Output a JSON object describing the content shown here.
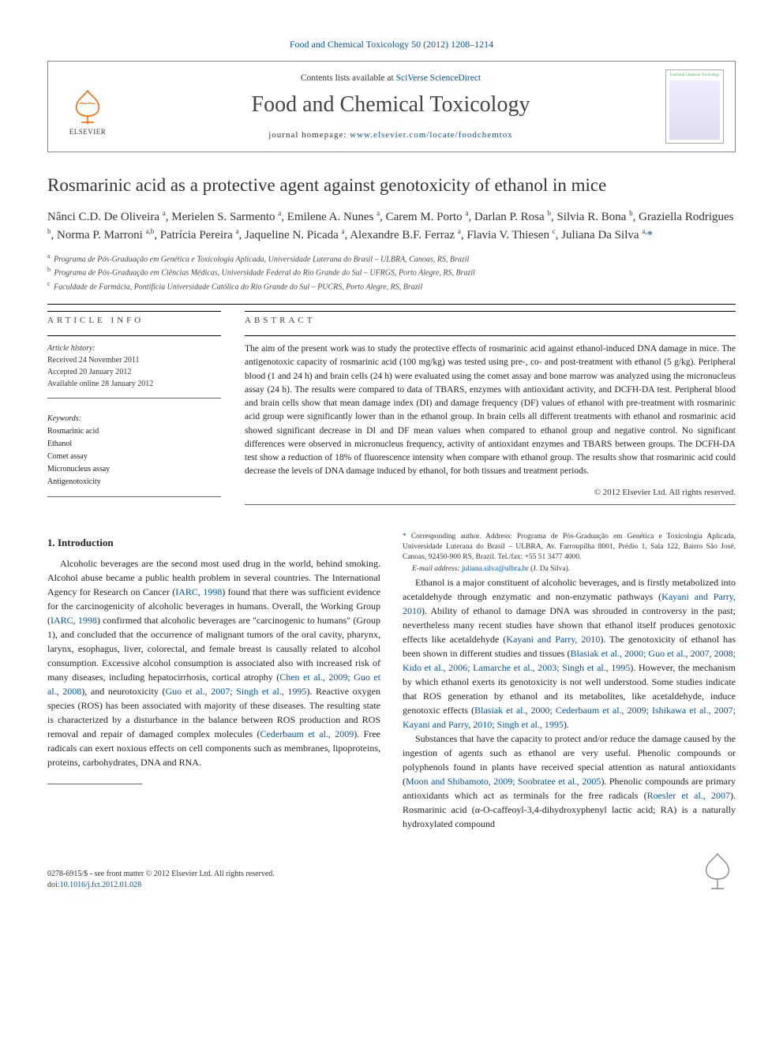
{
  "top_citation_link": "Food and Chemical Toxicology 50 (2012) 1208–1214",
  "header": {
    "contents_prefix": "Contents lists available at ",
    "contents_link": "SciVerse ScienceDirect",
    "journal_name": "Food and Chemical Toxicology",
    "homepage_prefix": "journal homepage: ",
    "homepage_link": "www.elsevier.com/locate/foodchemtox",
    "publisher_logo_text": "ELSEVIER",
    "cover_caption": "Food and Chemical Toxicology"
  },
  "article": {
    "title": "Rosmarinic acid as a protective agent against genotoxicity of ethanol in mice",
    "authors_html": "Nânci C.D. De Oliveira <sup>a</sup>, Merielen S. Sarmento <sup>a</sup>, Emilene A. Nunes <sup>a</sup>, Carem M. Porto <sup>a</sup>, Darlan P. Rosa <sup>b</sup>, Silvia R. Bona <sup>b</sup>, Graziella Rodrigues <sup>b</sup>, Norma P. Marroni <sup>a,b</sup>, Patrícia Pereira <sup>a</sup>, Jaqueline N. Picada <sup>a</sup>, Alexandre B.F. Ferraz <sup>a</sup>, Flavia V. Thiesen <sup>c</sup>, Juliana Da Silva <sup>a,</sup>",
    "corr_symbol": "*",
    "affiliations": [
      {
        "sup": "a",
        "text": "Programa de Pós-Graduação em Genética e Toxicologia Aplicada, Universidade Luterana do Brasil – ULBRA, Canoas, RS, Brazil"
      },
      {
        "sup": "b",
        "text": "Programa de Pós-Graduação em Ciências Médicas, Universidade Federal do Rio Grande do Sul – UFRGS, Porto Alegre, RS, Brazil"
      },
      {
        "sup": "c",
        "text": "Faculdade de Farmácia, Pontifícia Universidade Católica do Rio Grande do Sul – PUCRS, Porto Alegre, RS, Brazil"
      }
    ]
  },
  "info": {
    "heading": "article info",
    "history_label": "Article history:",
    "received": "Received 24 November 2011",
    "accepted": "Accepted 20 January 2012",
    "online": "Available online 28 January 2012",
    "keywords_label": "Keywords:",
    "keywords": [
      "Rosmarinic acid",
      "Ethanol",
      "Comet assay",
      "Micronucleus assay",
      "Antigenotoxicity"
    ]
  },
  "abstract": {
    "heading": "abstract",
    "text": "The aim of the present work was to study the protective effects of rosmarinic acid against ethanol-induced DNA damage in mice. The antigenotoxic capacity of rosmarinic acid (100 mg/kg) was tested using pre-, co- and post-treatment with ethanol (5 g/kg). Peripheral blood (1 and 24 h) and brain cells (24 h) were evaluated using the comet assay and bone marrow was analyzed using the micronucleus assay (24 h). The results were compared to data of TBARS, enzymes with antioxidant activity, and DCFH-DA test. Peripheral blood and brain cells show that mean damage index (DI) and damage frequency (DF) values of ethanol with pre-treatment with rosmarinic acid group were significantly lower than in the ethanol group. In brain cells all different treatments with ethanol and rosmarinic acid showed significant decrease in DI and DF mean values when compared to ethanol group and negative control. No significant differences were observed in micronucleus frequency, activity of antioxidant enzymes and TBARS between groups. The DCFH-DA test show a reduction of 18% of fluorescence intensity when compare with ethanol group. The results show that rosmarinic acid could decrease the levels of DNA damage induced by ethanol, for both tissues and treatment periods.",
    "copyright": "© 2012 Elsevier Ltd. All rights reserved."
  },
  "body": {
    "section_heading": "1. Introduction",
    "p1_a": "Alcoholic beverages are the second most used drug in the world, behind smoking. Alcohol abuse became a public health problem in several countries. The International Agency for Research on Cancer (",
    "p1_ref1": "IARC, 1998",
    "p1_b": ") found that there was sufficient evidence for the carcinogenicity of alcoholic beverages in humans. Overall, the Working Group (",
    "p1_ref2": "IARC, 1998",
    "p1_c": ") confirmed that alcoholic beverages are \"carcinogenic to humans\" (Group 1), and concluded that the occurrence of malignant tumors of the oral cavity, pharynx, larynx, esophagus, liver, colorectal, and female breast is causally related to alcohol consumption. Excessive alcohol consumption is associated also with increased risk of many diseases, including hepatocirrhosis, cortical atrophy (",
    "p1_ref3": "Chen et al., 2009; Guo et al., 2008",
    "p1_d": "), and neurotoxicity (",
    "p1_ref4": "Guo et al., 2007; Singh et al., 1995",
    "p1_e": "). Reactive oxygen species (ROS) has been associated with majority of these diseases. The resulting state is characterized by a disturbance in the balance between ROS production and ROS removal and repair of damaged complex molecules (",
    "p1_ref5": "Cederbaum et al., 2009",
    "p1_f": "). Free radicals can exert noxious effects on cell components such as membranes, lipoproteins, proteins, carbohydrates, DNA and RNA.",
    "p2_a": "Ethanol is a major constituent of alcoholic beverages, and is firstly metabolized into acetaldehyde through enzymatic and non-enzymatic pathways (",
    "p2_ref1": "Kayani and Parry, 2010",
    "p2_b": "). Ability of ethanol to damage DNA was shrouded in controversy in the past; nevertheless many recent studies have shown that ethanol itself produces genotoxic effects like acetaldehyde (",
    "p2_ref2": "Kayani and Parry, 2010",
    "p2_c": "). The genotoxicity of ethanol has been shown in different studies and tissues (",
    "p2_ref3": "Blasiak et al., 2000; Guo et al., 2007, 2008; Kido et al., 2006; Lamarche et al., 2003; Singh et al., 1995",
    "p2_d": "). However, the mechanism by which ethanol exerts its genotoxicity is not well understood. Some studies indicate that ROS generation by ethanol and its metabolites, like acetaldehyde, induce genotoxic effects (",
    "p2_ref4": "Blasiak et al., 2000; Cederbaum et al., 2009; Ishikawa et al., 2007; Kayani and Parry, 2010; Singh et al., 1995",
    "p2_e": ").",
    "p3_a": "Substances that have the capacity to protect and/or reduce the damage caused by the ingestion of agents such as ethanol are very useful. Phenolic compounds or polyphenols found in plants have received special attention as natural antioxidants (",
    "p3_ref1": "Moon and Shibamoto, 2009; Soobratee et al., 2005",
    "p3_b": "). Phenolic compounds are primary antioxidants which act as terminals for the free radicals (",
    "p3_ref2": "Roesler et al., 2007",
    "p3_c": "). Rosmarinic acid (α-O-caffeoyl-3,4-dihydroxyphenyl lactic acid; RA) is a naturally hydroxylated compound"
  },
  "footnotes": {
    "corr_symbol": "*",
    "corr_text": " Corresponding author. Address: Programa de Pós-Graduação em Genética e Toxicologia Aplicada, Universidade Luterana do Brasil – ULBRA, Av. Farroupilha 8001, Prédio 1, Sala 122, Bairro São José, Canoas, 92450-900 RS, Brazil. Tel./fax: +55 51 3477 4000.",
    "email_label": "E-mail address: ",
    "email": "juliana.silva@ulbra.br",
    "email_suffix": " (J. Da Silva)."
  },
  "footer": {
    "issn_line": "0278-6915/$ - see front matter © 2012 Elsevier Ltd. All rights reserved.",
    "doi_prefix": "doi:",
    "doi": "10.1016/j.fct.2012.01.028"
  },
  "colors": {
    "link": "#0055a5",
    "text": "#222222",
    "rule": "#000000",
    "publisher_orange": "#ff6a00"
  }
}
